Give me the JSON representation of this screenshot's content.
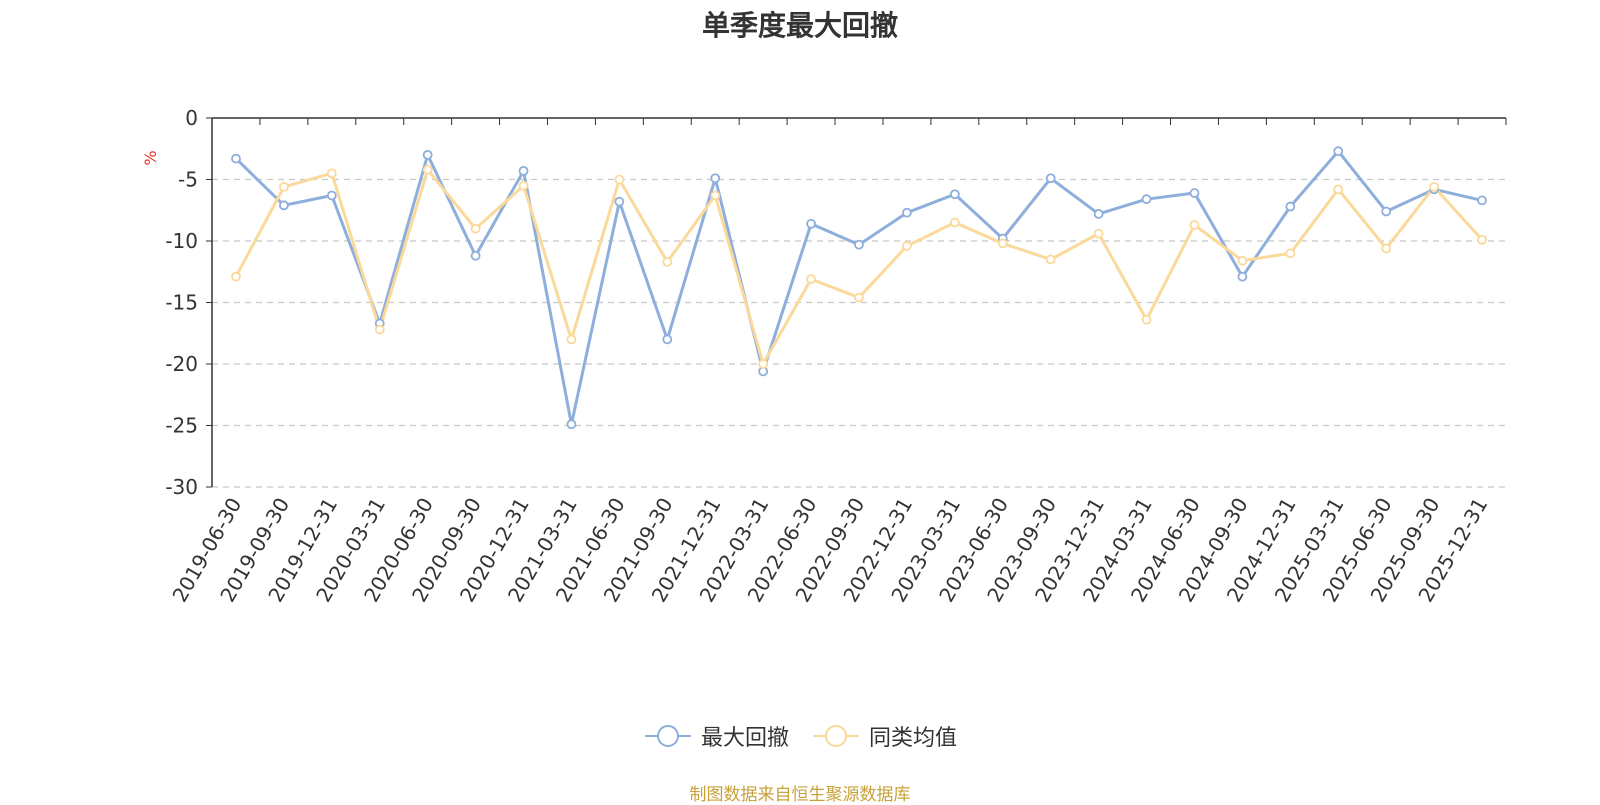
{
  "chart_data": {
    "type": "line",
    "title": "单季度最大回撤",
    "ylabel": "%",
    "xlabel": "",
    "ylim": [
      -30,
      0
    ],
    "yticks": [
      0,
      -5,
      -10,
      -15,
      -20,
      -25,
      -30
    ],
    "grid": true,
    "legend_position": "bottom-center",
    "categories": [
      "2019-06-30",
      "2019-09-30",
      "2019-12-31",
      "2020-03-31",
      "2020-06-30",
      "2020-09-30",
      "2020-12-31",
      "2021-03-31",
      "2021-06-30",
      "2021-09-30",
      "2021-12-31",
      "2022-03-31",
      "2022-06-30",
      "2022-09-30",
      "2022-12-31",
      "2023-03-31",
      "2023-06-30",
      "2023-09-30",
      "2023-12-31",
      "2024-03-31",
      "2024-06-30",
      "2024-09-30",
      "2024-12-31",
      "2025-03-31",
      "2025-06-30",
      "2025-09-30",
      "2025-12-31"
    ],
    "series": [
      {
        "name": "最大回撤",
        "color": "#8eaedb",
        "values": [
          -3.3,
          -7.1,
          -6.3,
          -16.7,
          -3.0,
          -11.2,
          -4.3,
          -24.9,
          -6.8,
          -18.0,
          -4.9,
          -20.6,
          -8.6,
          -10.3,
          -7.7,
          -6.2,
          -9.8,
          -4.9,
          -7.8,
          -6.6,
          -6.1,
          -12.9,
          -7.2,
          -2.7,
          -7.6,
          -5.8,
          -6.7
        ]
      },
      {
        "name": "同类均值",
        "color": "#fbd99b",
        "values": [
          -12.9,
          -5.6,
          -4.5,
          -17.2,
          -4.2,
          -9.0,
          -5.5,
          -18.0,
          -5.0,
          -11.7,
          -6.3,
          -20.0,
          -13.1,
          -14.6,
          -10.4,
          -8.5,
          -10.2,
          -11.5,
          -9.4,
          -16.4,
          -8.7,
          -11.6,
          -11.0,
          -5.8,
          -10.6,
          -5.6,
          -9.9
        ]
      }
    ]
  },
  "source_text": "制图数据来自恒生聚源数据库"
}
